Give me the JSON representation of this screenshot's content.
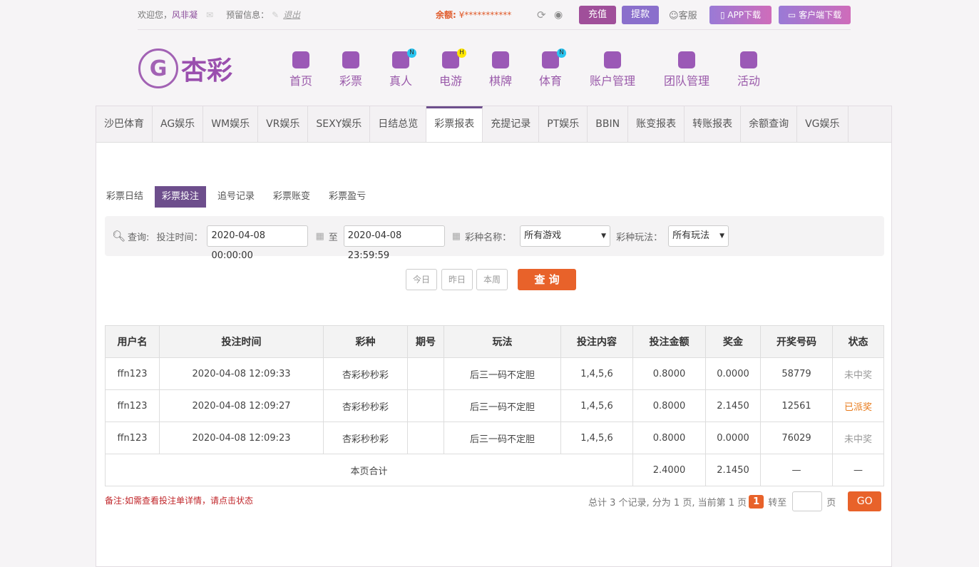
{
  "topbar": {
    "welcome": "欢迎您，",
    "username": "风非凝",
    "reserved_label": "预留信息：",
    "logout": "退出",
    "balance_label": "余额:",
    "balance_value": "¥***********",
    "recharge": "充值",
    "withdraw": "提款",
    "service": "客服",
    "app_download": "APP下载",
    "client_download": "客户端下载"
  },
  "logo": {
    "text": "杏彩"
  },
  "nav": [
    {
      "label": "首页"
    },
    {
      "label": "彩票"
    },
    {
      "label": "真人",
      "badge": "N"
    },
    {
      "label": "电游",
      "badge": "H"
    },
    {
      "label": "棋牌"
    },
    {
      "label": "体育",
      "badge": "N"
    },
    {
      "label": "账户管理"
    },
    {
      "label": "团队管理"
    },
    {
      "label": "活动"
    }
  ],
  "tabs": [
    "沙巴体育",
    "AG娱乐",
    "WM娱乐",
    "VR娱乐",
    "SEXY娱乐",
    "日结总览",
    "彩票报表",
    "充提记录",
    "PT娱乐",
    "BBIN",
    "账变报表",
    "转账报表",
    "余额查询",
    "VG娱乐"
  ],
  "active_tab": "彩票报表",
  "subtabs": [
    "彩票日结",
    "彩票投注",
    "追号记录",
    "彩票账变",
    "彩票盈亏"
  ],
  "filter": {
    "query_label": "查询:",
    "time_label": "投注时间：",
    "start": "2020-04-08 00:00:00",
    "to": "至",
    "end": "2020-04-08 23:59:59",
    "game_label": "彩种名称：",
    "game_value": "所有游戏",
    "play_label": "彩种玩法：",
    "play_value": "所有玩法"
  },
  "quick": {
    "today": "今日",
    "yesterday": "昨日",
    "week": "本周",
    "search": "查 询"
  },
  "table": {
    "headers": [
      "用户名",
      "投注时间",
      "彩种",
      "期号",
      "玩法",
      "投注内容",
      "投注金额",
      "奖金",
      "开奖号码",
      "状态"
    ],
    "rows": [
      [
        "ffn123",
        "2020-04-08 12:09:33",
        "杏彩秒秒彩",
        "",
        "后三一码不定胆",
        "1,4,5,6",
        "0.8000",
        "0.0000",
        "58779",
        "未中奖"
      ],
      [
        "ffn123",
        "2020-04-08 12:09:27",
        "杏彩秒秒彩",
        "",
        "后三一码不定胆",
        "1,4,5,6",
        "0.8000",
        "2.1450",
        "12561",
        "已派奖"
      ],
      [
        "ffn123",
        "2020-04-08 12:09:23",
        "杏彩秒秒彩",
        "",
        "后三一码不定胆",
        "1,4,5,6",
        "0.8000",
        "0.0000",
        "76029",
        "未中奖"
      ]
    ],
    "total": {
      "label": "本页合计",
      "amount": "2.4000",
      "bonus": "2.1450",
      "numbers": "—",
      "status": "—"
    }
  },
  "footer": {
    "note": "备注:如需查看投注单详情，请点击状态",
    "summary": "总计 3 个记录, 分为 1 页, 当前第 1 页",
    "page": "1",
    "goto": "转至",
    "page_unit": "页",
    "go": "GO"
  },
  "colors": {
    "accent": "#6d4e8c",
    "orange": "#e8622a",
    "won": "#e87a1a"
  }
}
